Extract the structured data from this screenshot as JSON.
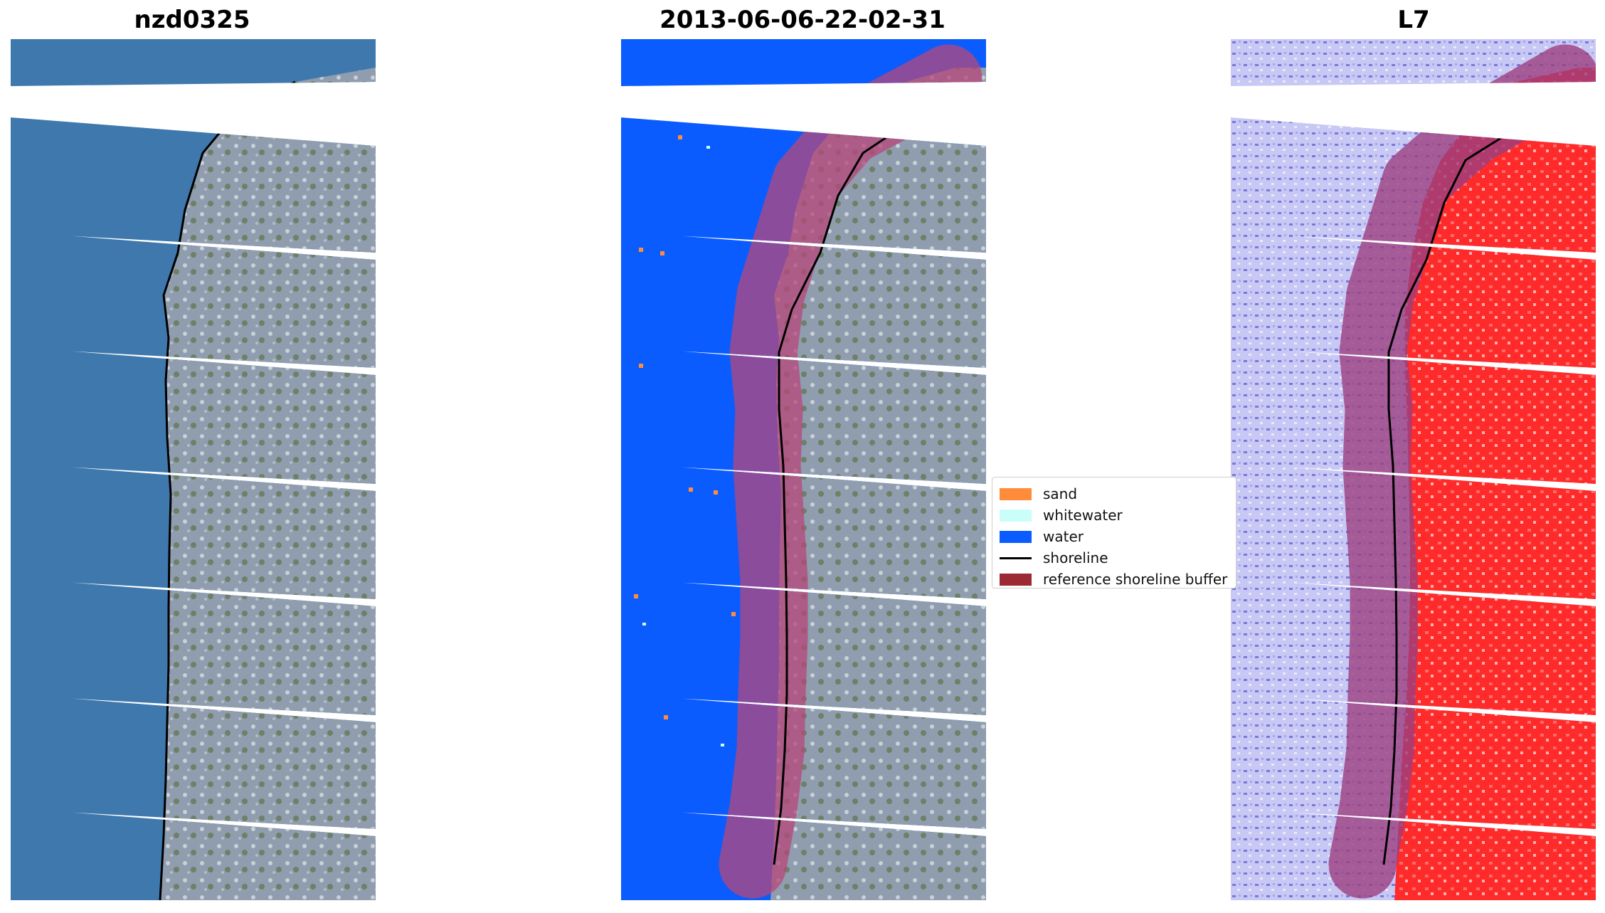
{
  "panels": [
    {
      "title": "nzd0325",
      "kind": "rgb"
    },
    {
      "title": "2013-06-06-22-02-31",
      "kind": "classified"
    },
    {
      "title": "L7",
      "kind": "index"
    }
  ],
  "legend": [
    {
      "label": "sand",
      "color": "#ff8c3b",
      "type": "patch"
    },
    {
      "label": "whitewater",
      "color": "#c9fff8",
      "type": "patch"
    },
    {
      "label": "water",
      "color": "#0a5cff",
      "type": "patch"
    },
    {
      "label": "shoreline",
      "color": "#000000",
      "type": "line"
    },
    {
      "label": "reference shoreline buffer",
      "color": "#9b2a35",
      "type": "patch"
    }
  ],
  "colors": {
    "sea": "#3f78ad",
    "land": "#9aa8b8",
    "water_class": "#0a5cff",
    "buffer": "#b5477a",
    "index_water": "#c8c8f5",
    "index_land": "#ff2a2a"
  }
}
